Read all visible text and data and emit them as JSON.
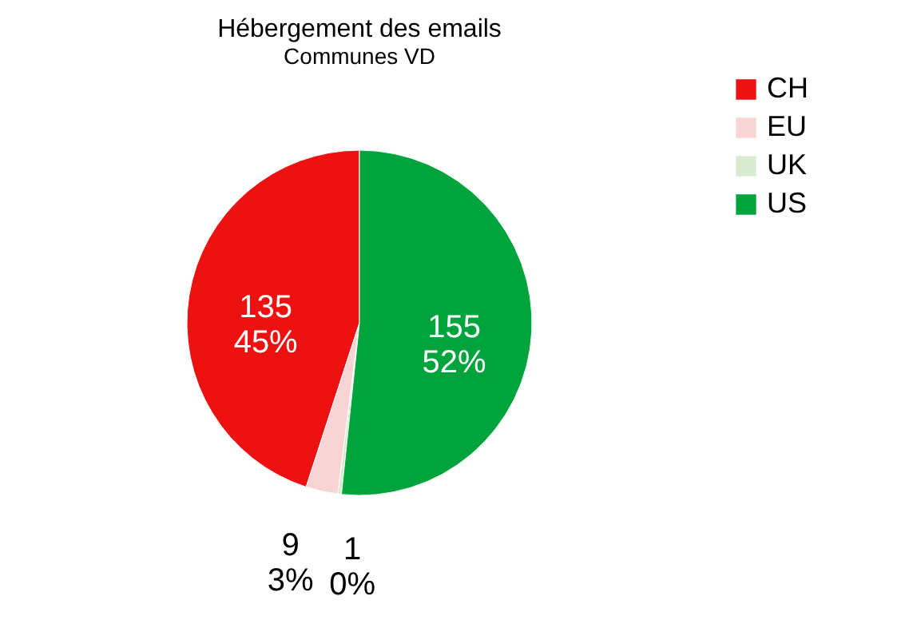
{
  "chart_data": {
    "type": "pie",
    "title": "Hébergement des emails",
    "subtitle": "Communes VD",
    "categories": [
      "CH",
      "EU",
      "UK",
      "US"
    ],
    "values": [
      135,
      9,
      1,
      155
    ],
    "colors": [
      "#ee1111",
      "#f9d4d4",
      "#d9ead3",
      "#00a33c"
    ],
    "value_labels": [
      "135\n45%",
      "9\n3%",
      "1\n0%",
      "155\n52%"
    ],
    "legend": "right"
  }
}
